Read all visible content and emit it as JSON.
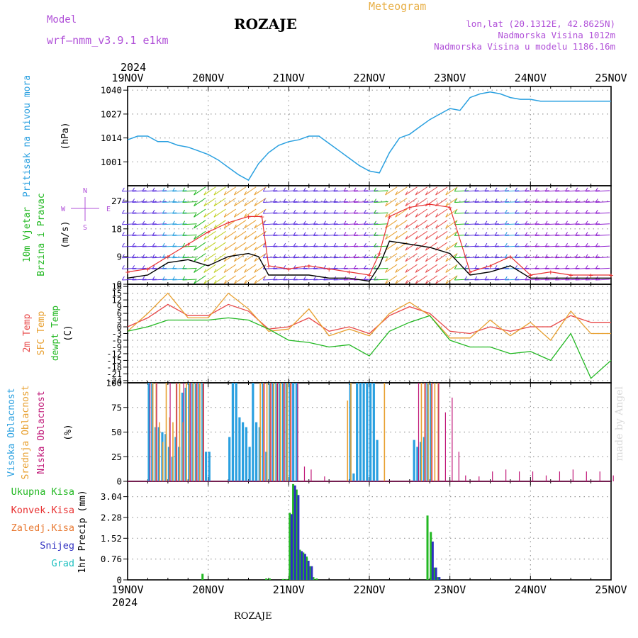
{
  "header": {
    "title": "ROZAJE",
    "model_label": "Model",
    "model_name": "wrf—nmm_v3.9.1  e1km",
    "meteogram_label": "Meteogram",
    "location": "lon,lat (20.1312E, 42.8625N)",
    "elevation": "Nadmorska Visina 1012m",
    "model_elevation": "Nadmorska Visina u modelu 1186.16m"
  },
  "footer": {
    "station": "ROZAJE",
    "credit": "made by Angel"
  },
  "time_axis": {
    "year": "2024",
    "ticks": [
      "19NOV",
      "20NOV",
      "21NOV",
      "22NOV",
      "23NOV",
      "24NOV",
      "25NOV"
    ],
    "range_hours": [
      0,
      144
    ]
  },
  "colors": {
    "pressure": "#2aa0e0",
    "wind_label": "#22b822",
    "wind_speed": "#000000",
    "gust": "#e83030",
    "t2m": "#e84848",
    "sfc": "#e8a030",
    "dewpt": "#22b822",
    "cloud_high": "#2aa0e0",
    "cloud_mid": "#e8a030",
    "cloud_low": "#c01878",
    "precip_total": "#22b822",
    "precip_conv": "#e83030",
    "precip_frozen": "#e87830",
    "precip_snow": "#3030c0",
    "precip_hail": "#20c0c0",
    "axis_label": "#000000",
    "side_label": "#b050d8"
  },
  "chart_data": [
    {
      "type": "line",
      "panel": "pressure",
      "labels": [
        "Pritisak na nivou mora"
      ],
      "ylabel": "(hPa)",
      "yticks": [
        1001,
        1014,
        1027,
        1040
      ],
      "ylim": [
        988,
        1042
      ],
      "grid": true,
      "series": [
        {
          "x": [
            0,
            3,
            6,
            9,
            12,
            15,
            18,
            21,
            24,
            27,
            30,
            33,
            36,
            39,
            42,
            45,
            48,
            51,
            54,
            57,
            60,
            63,
            66,
            69,
            72,
            75,
            78,
            81,
            84,
            87,
            90,
            93,
            96,
            99,
            102,
            105,
            108,
            111,
            114,
            117,
            120,
            123,
            126,
            129,
            132,
            135,
            138,
            141,
            144
          ],
          "values": [
            1013,
            1015,
            1015,
            1012,
            1012,
            1010,
            1009,
            1007,
            1005,
            1002,
            998,
            994,
            991,
            1000,
            1006,
            1010,
            1012,
            1013,
            1015,
            1015,
            1011,
            1007,
            1003,
            999,
            996,
            995,
            1006,
            1014,
            1016,
            1020,
            1024,
            1027,
            1030,
            1029,
            1036,
            1038,
            1039,
            1038,
            1036,
            1035,
            1035,
            1034,
            1034,
            1034,
            1034,
            1034,
            1034,
            1034,
            1034
          ]
        }
      ]
    },
    {
      "type": "line",
      "panel": "wind",
      "labels": [
        "10m Vjetar",
        "Brzina i Pravac"
      ],
      "ylabel": "(m/s)",
      "compass": [
        "N",
        "W",
        "E",
        "S"
      ],
      "yticks": [
        0,
        9,
        18,
        27
      ],
      "ylim": [
        0,
        32
      ],
      "grid": true,
      "series": [
        {
          "name": "speed",
          "x": [
            0,
            6,
            12,
            18,
            24,
            30,
            36,
            39,
            42,
            48,
            54,
            60,
            66,
            72,
            75,
            78,
            84,
            90,
            96,
            102,
            108,
            114,
            120,
            126,
            132,
            138,
            144
          ],
          "values": [
            2,
            3,
            7,
            8,
            6,
            9,
            10,
            9,
            3,
            3,
            3,
            2,
            2,
            1,
            6,
            14,
            13,
            12,
            10,
            3,
            4,
            6,
            2,
            2,
            2,
            2,
            2
          ]
        },
        {
          "name": "gust",
          "x": [
            0,
            6,
            12,
            18,
            24,
            30,
            36,
            40,
            42,
            48,
            54,
            60,
            66,
            72,
            75,
            78,
            84,
            90,
            96,
            102,
            108,
            114,
            120,
            126,
            132,
            138,
            144
          ],
          "values": [
            4,
            5,
            9,
            13,
            17,
            20,
            22,
            22,
            6,
            5,
            6,
            5,
            4,
            3,
            10,
            22,
            25,
            26,
            25,
            4,
            6,
            9,
            3,
            4,
            3,
            3,
            3
          ]
        }
      ]
    },
    {
      "type": "line",
      "panel": "temperature",
      "labels": [
        "2m Temp",
        "SFC Temp",
        "dewpt Temp"
      ],
      "ylabel": "(C)",
      "yticks": [
        -24,
        -21,
        -18,
        -15,
        -12,
        -9,
        -6,
        -3,
        0,
        3,
        6,
        9,
        12,
        15,
        18
      ],
      "ylim": [
        -25,
        19
      ],
      "grid": true,
      "series": [
        {
          "name": "2m Temp",
          "x": [
            0,
            6,
            12,
            18,
            24,
            30,
            36,
            42,
            48,
            54,
            60,
            66,
            72,
            78,
            84,
            90,
            96,
            102,
            108,
            114,
            120,
            126,
            132,
            138,
            144
          ],
          "values": [
            0,
            4,
            10,
            5,
            5,
            10,
            7,
            -1,
            0,
            4,
            -2,
            0,
            -3,
            5,
            9,
            6,
            -2,
            -3,
            0,
            -2,
            0,
            0,
            5,
            2,
            2
          ]
        },
        {
          "name": "SFC Temp",
          "x": [
            0,
            6,
            12,
            18,
            24,
            30,
            36,
            42,
            48,
            54,
            60,
            66,
            72,
            78,
            84,
            90,
            96,
            102,
            108,
            114,
            120,
            126,
            132,
            138,
            144
          ],
          "values": [
            -2,
            6,
            15,
            4,
            4,
            15,
            8,
            -2,
            -1,
            8,
            -4,
            -1,
            -4,
            6,
            11,
            5,
            -5,
            -5,
            3,
            -4,
            2,
            -6,
            7,
            -3,
            -3
          ]
        },
        {
          "name": "dewpt Temp",
          "x": [
            0,
            6,
            12,
            18,
            24,
            30,
            36,
            42,
            48,
            54,
            60,
            66,
            72,
            78,
            84,
            90,
            96,
            102,
            108,
            114,
            120,
            126,
            132,
            138,
            144
          ],
          "values": [
            -2,
            0,
            3,
            3,
            3,
            4,
            3,
            -1,
            -6,
            -7,
            -9,
            -8,
            -13,
            -2,
            2,
            5,
            -6,
            -9,
            -9,
            -12,
            -11,
            -15,
            -3,
            -23,
            -15
          ]
        }
      ]
    },
    {
      "type": "bar",
      "panel": "clouds",
      "labels": [
        "Visoka Oblacnost",
        "Srednja Oblacnost",
        "Niska Oblacnost"
      ],
      "ylabel": "(%)",
      "yticks": [
        0,
        25,
        50,
        75,
        100
      ],
      "ylim": [
        0,
        100
      ],
      "grid": true,
      "series": [
        {
          "name": "Visoka Oblacnost",
          "x": [
            6,
            7,
            8,
            9,
            10,
            11,
            12,
            13,
            14,
            15,
            16,
            17,
            18,
            19,
            20,
            21,
            22,
            23,
            24,
            30,
            31,
            32,
            33,
            34,
            35,
            36,
            37,
            38,
            39,
            40,
            41,
            42,
            43,
            44,
            45,
            46,
            47,
            48,
            49,
            50,
            51,
            52,
            53,
            54,
            55,
            56,
            57,
            58,
            59,
            60,
            66,
            67,
            68,
            69,
            70,
            71,
            72,
            73,
            74,
            75,
            85,
            86,
            87,
            88,
            89,
            90
          ],
          "values": [
            100,
            100,
            55,
            55,
            50,
            48,
            35,
            25,
            45,
            35,
            90,
            95,
            100,
            100,
            100,
            100,
            100,
            30,
            30,
            45,
            100,
            100,
            65,
            60,
            55,
            35,
            100,
            60,
            55,
            100,
            30,
            100,
            100,
            100,
            100,
            100,
            100,
            100,
            100,
            100,
            0,
            0,
            0,
            0,
            0,
            0,
            0,
            0,
            0,
            0,
            100,
            8,
            100,
            100,
            100,
            100,
            100,
            100,
            42,
            0,
            42,
            35,
            40,
            45,
            100,
            100
          ]
        },
        {
          "name": "Srednja Oblacnost",
          "x": [
            7,
            8,
            9,
            10,
            11,
            12,
            13,
            14,
            15,
            16,
            17,
            18,
            19,
            20,
            21,
            22,
            39,
            40,
            41,
            42,
            43,
            44,
            45,
            46,
            47,
            48,
            65,
            66,
            76,
            87,
            88,
            89,
            90,
            91,
            92
          ],
          "values": [
            100,
            100,
            60,
            40,
            100,
            65,
            60,
            100,
            100,
            60,
            100,
            100,
            100,
            100,
            100,
            100,
            100,
            100,
            100,
            100,
            100,
            100,
            100,
            100,
            100,
            100,
            82,
            100,
            100,
            100,
            100,
            100,
            100,
            100,
            100
          ]
        },
        {
          "name": "Niska Oblacnost",
          "x": [
            6,
            8,
            12,
            14,
            16,
            18,
            20,
            22,
            40,
            42,
            44,
            46,
            48,
            50,
            52,
            54,
            56,
            58,
            86,
            88,
            90,
            92,
            94,
            96,
            98,
            100,
            104,
            108,
            112,
            116,
            120,
            124,
            128,
            132,
            136,
            140,
            144
          ],
          "values": [
            100,
            100,
            100,
            100,
            100,
            100,
            100,
            100,
            100,
            100,
            100,
            100,
            100,
            100,
            15,
            12,
            0,
            5,
            100,
            100,
            100,
            100,
            70,
            85,
            30,
            6,
            5,
            10,
            12,
            10,
            10,
            6,
            10,
            12,
            10,
            10,
            6
          ]
        }
      ]
    },
    {
      "type": "bar",
      "panel": "precip",
      "labels": [
        "Ukupna Kisa",
        "Konvek.Kisa",
        "Zaledj.Kisa",
        "Snijeg",
        "Grad"
      ],
      "ylabel": "1hr Precip (mm)",
      "yticks": [
        0,
        0.76,
        1.52,
        2.28,
        3.04
      ],
      "ylim": [
        0,
        3.6
      ],
      "grid": true,
      "series": [
        {
          "name": "Ukupna Kisa",
          "x": [
            22,
            41,
            42,
            46,
            47,
            48,
            49,
            50,
            51,
            52,
            53,
            54,
            55,
            56,
            89,
            90,
            91,
            92
          ],
          "values": [
            0.22,
            0.05,
            0.05,
            0.03,
            0.03,
            2.45,
            3.5,
            3.3,
            1.1,
            1.0,
            0.85,
            0.5,
            0.1,
            0.05,
            2.35,
            1.75,
            0.45,
            0.1
          ]
        },
        {
          "name": "Snijeg",
          "x": [
            48,
            49,
            50,
            51,
            52,
            53,
            54,
            90,
            91,
            92
          ],
          "values": [
            2.4,
            3.45,
            3.1,
            1.05,
            0.95,
            0.7,
            0.5,
            1.4,
            0.45,
            0.1
          ]
        }
      ]
    }
  ]
}
